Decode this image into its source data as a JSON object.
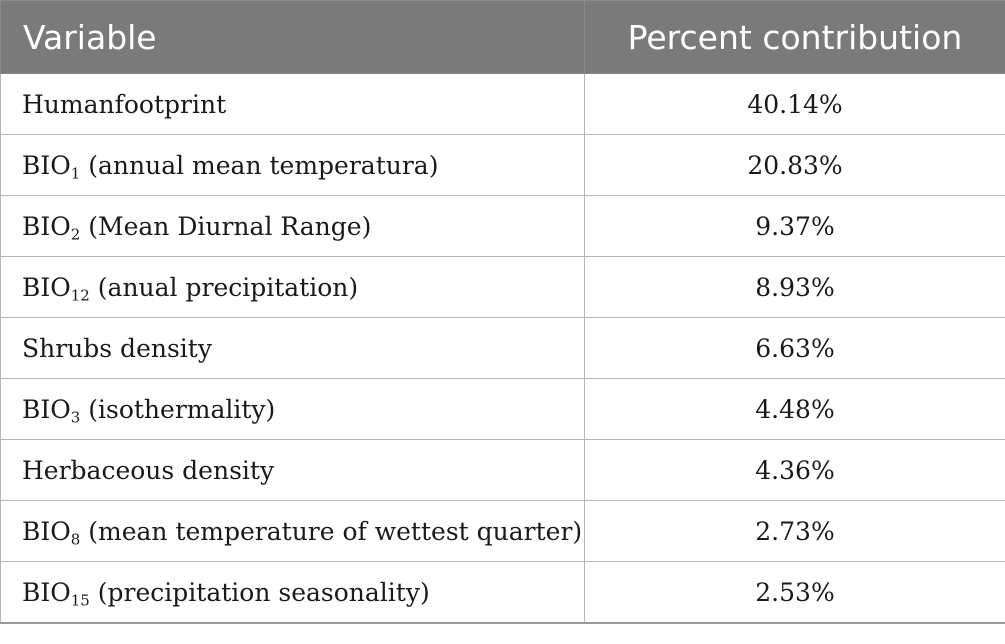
{
  "table": {
    "headers": {
      "variable": "Variable",
      "percent": "Percent contribution"
    },
    "rows": [
      {
        "base": "Humanfootprint",
        "sub": "",
        "rest": "",
        "value": "40.14%"
      },
      {
        "base": "BIO",
        "sub": "1",
        "rest": " (annual mean temperatura)",
        "value": "20.83%"
      },
      {
        "base": "BIO",
        "sub": "2",
        "rest": " (Mean Diurnal Range)",
        "value": "9.37%"
      },
      {
        "base": "BIO",
        "sub": "12",
        "rest": " (anual precipitation)",
        "value": "8.93%"
      },
      {
        "base": "Shrubs density",
        "sub": "",
        "rest": "",
        "value": "6.63%"
      },
      {
        "base": "BIO",
        "sub": "3",
        "rest": " (isothermality)",
        "value": "4.48%"
      },
      {
        "base": "Herbaceous density",
        "sub": "",
        "rest": "",
        "value": "4.36%"
      },
      {
        "base": "BIO",
        "sub": "8",
        "rest": " (mean temperature of wettest quarter)",
        "value": "2.73%"
      },
      {
        "base": "BIO",
        "sub": "15",
        "rest": " (precipitation seasonality)",
        "value": "2.53%"
      }
    ]
  }
}
